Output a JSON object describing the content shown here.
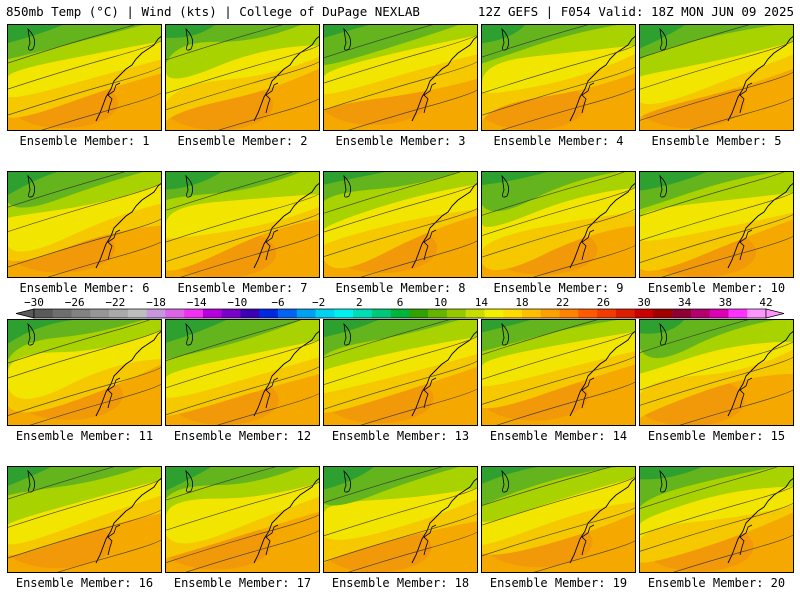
{
  "header": {
    "left_title": "850mb Temp (°C) | Wind (kts) | College of DuPage NEXLAB",
    "right_title": "12Z GEFS | F054 Valid: 18Z MON JUN 09 2025"
  },
  "panels": [
    {
      "label": "Ensemble Member: 1"
    },
    {
      "label": "Ensemble Member: 2"
    },
    {
      "label": "Ensemble Member: 3"
    },
    {
      "label": "Ensemble Member: 4"
    },
    {
      "label": "Ensemble Member: 5"
    },
    {
      "label": "Ensemble Member: 6"
    },
    {
      "label": "Ensemble Member: 7"
    },
    {
      "label": "Ensemble Member: 8"
    },
    {
      "label": "Ensemble Member: 9"
    },
    {
      "label": "Ensemble Member: 10"
    },
    {
      "label": "Ensemble Member: 11"
    },
    {
      "label": "Ensemble Member: 12"
    },
    {
      "label": "Ensemble Member: 13"
    },
    {
      "label": "Ensemble Member: 14"
    },
    {
      "label": "Ensemble Member: 15"
    },
    {
      "label": "Ensemble Member: 16"
    },
    {
      "label": "Ensemble Member: 17"
    },
    {
      "label": "Ensemble Member: 18"
    },
    {
      "label": "Ensemble Member: 19"
    },
    {
      "label": "Ensemble Member: 20"
    }
  ],
  "colorbar": {
    "tick_labels": [
      "-30",
      "-26",
      "-22",
      "-18",
      "-14",
      "-10",
      "-6",
      "-2",
      "2",
      "6",
      "10",
      "14",
      "18",
      "22",
      "26",
      "30",
      "34",
      "38",
      "42"
    ],
    "colors": [
      "#5a5a5a",
      "#6e6e6e",
      "#828282",
      "#969696",
      "#aaaaaa",
      "#bebebe",
      "#c896dc",
      "#dc64e6",
      "#f032f0",
      "#b400dc",
      "#7800c8",
      "#3c00b4",
      "#0028dc",
      "#0064f0",
      "#00a0f0",
      "#00d2f0",
      "#00f0f0",
      "#00dcb4",
      "#00c878",
      "#00b43c",
      "#32a000",
      "#64b400",
      "#96c800",
      "#c8dc00",
      "#f0f000",
      "#ffdc00",
      "#ffbe00",
      "#ffa000",
      "#ff8200",
      "#ff5a00",
      "#f03c00",
      "#dc1e00",
      "#c80000",
      "#a00000",
      "#8c0032",
      "#b4006e",
      "#dc00b4",
      "#ff32ff",
      "#ff96ff"
    ],
    "unit": "°C"
  },
  "field_colors": {
    "cold_green": "#2ea030",
    "green": "#64b41e",
    "yellow_green": "#a8d200",
    "yellow": "#f2e600",
    "gold": "#f5c800",
    "orange": "#f5a800",
    "dark_orange": "#ee8c10"
  }
}
